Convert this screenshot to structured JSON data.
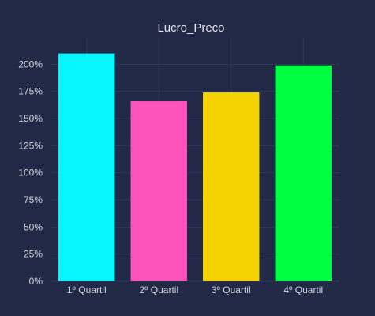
{
  "chart_data": {
    "type": "bar",
    "title": "Lucro_Preco",
    "xlabel": "",
    "ylabel": "",
    "categories": [
      "1º Quartil",
      "2º Quartil",
      "3º Quartil",
      "4º Quartil"
    ],
    "values": [
      2.1,
      1.66,
      1.74,
      1.99
    ],
    "colors": [
      "#08f7fe",
      "#fe53bb",
      "#f5d300",
      "#00ff41"
    ],
    "ylim": [
      0,
      2.25
    ],
    "yticks": [
      0,
      0.25,
      0.5,
      0.75,
      1.0,
      1.25,
      1.5,
      1.75,
      2.0
    ],
    "ytick_labels": [
      "0%",
      "25%",
      "50%",
      "75%",
      "100%",
      "125%",
      "150%",
      "175%",
      "200%"
    ],
    "grid": true,
    "background": "#212946"
  }
}
